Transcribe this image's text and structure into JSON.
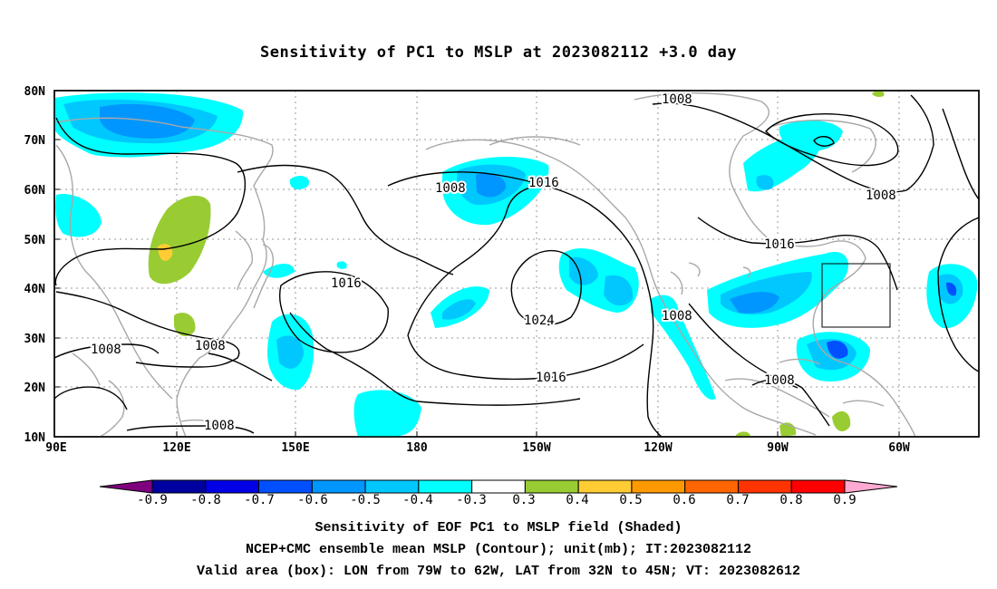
{
  "title": "Sensitivity of PC1 to MSLP at 2023082112 +3.0 day",
  "axes": {
    "lat_labels": [
      "80N",
      "70N",
      "60N",
      "50N",
      "40N",
      "30N",
      "20N",
      "10N"
    ],
    "lon_labels": [
      "90E",
      "120E",
      "150E",
      "180",
      "150W",
      "120W",
      "90W",
      "60W"
    ]
  },
  "contour_labels": [
    {
      "text": "1008",
      "id": "c1"
    },
    {
      "text": "1008",
      "id": "c2"
    },
    {
      "text": "1016",
      "id": "c3"
    },
    {
      "text": "1008",
      "id": "c4"
    },
    {
      "text": "1016",
      "id": "c5"
    },
    {
      "text": "1016",
      "id": "c6"
    },
    {
      "text": "1024",
      "id": "c7"
    },
    {
      "text": "1008",
      "id": "c8"
    },
    {
      "text": "1008",
      "id": "c9"
    },
    {
      "text": "1008",
      "id": "c10"
    },
    {
      "text": "1016",
      "id": "c11"
    },
    {
      "text": "1008",
      "id": "c12"
    },
    {
      "text": "1008",
      "id": "c13"
    }
  ],
  "colorbar": {
    "labels": [
      "-0.9",
      "-0.8",
      "-0.7",
      "-0.6",
      "-0.5",
      "-0.4",
      "-0.3",
      "0.3",
      "0.4",
      "0.5",
      "0.6",
      "0.7",
      "0.8",
      "0.9"
    ],
    "colors": [
      "#7f007f",
      "#0000a0",
      "#0000e6",
      "#0050ff",
      "#0096ff",
      "#00c8ff",
      "#00ffff",
      "#ffffff",
      "#99cc33",
      "#ffcc33",
      "#ff9900",
      "#ff6600",
      "#ff3300",
      "#ff0000",
      "#ffaad2"
    ]
  },
  "captions": {
    "line1": "Sensitivity of EOF PC1 to MSLP field (Shaded)",
    "line2": "NCEP+CMC ensemble mean MSLP (Contour); unit(mb); IT:2023082112",
    "line3": "Valid area (box): LON from 79W to 62W, LAT from 32N to 45N; VT: 2023082612"
  }
}
